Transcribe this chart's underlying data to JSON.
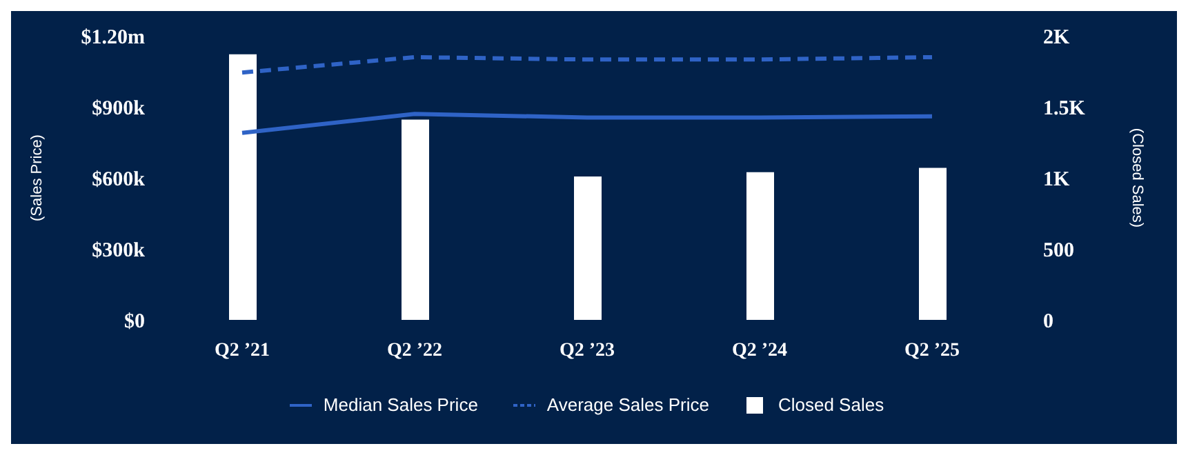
{
  "chart_data": {
    "type": "bar",
    "categories": [
      "Q2 ’21",
      "Q2 ’22",
      "Q2 ’23",
      "Q2 ’24",
      "Q2 ’25"
    ],
    "ylabel": "(Sales Price)",
    "y2label": "(Closed Sales)",
    "series": [
      {
        "name": "Median Sales Price",
        "type": "line",
        "color": "#2f63c6",
        "line_style": "solid",
        "values": [
          790000,
          870000,
          855000,
          855000,
          860000
        ]
      },
      {
        "name": "Average Sales Price",
        "type": "line",
        "color": "#2f63c6",
        "line_style": "dashed",
        "values": [
          1045000,
          1110000,
          1100000,
          1100000,
          1110000
        ]
      },
      {
        "name": "Closed Sales",
        "axis": "y2",
        "color": "#ffffff",
        "values": [
          1870,
          1410,
          1010,
          1040,
          1070
        ]
      }
    ],
    "ylim": [
      0,
      1200000
    ],
    "yticks": [
      {
        "value": 0,
        "label": "$0"
      },
      {
        "value": 300000,
        "label": "$300k"
      },
      {
        "value": 600000,
        "label": "$600k"
      },
      {
        "value": 900000,
        "label": "$900k"
      },
      {
        "value": 1200000,
        "label": "$1.20m"
      }
    ],
    "y2lim": [
      0,
      2000
    ],
    "y2ticks": [
      {
        "value": 0,
        "label": "0"
      },
      {
        "value": 500,
        "label": "500"
      },
      {
        "value": 1000,
        "label": "1K"
      },
      {
        "value": 1500,
        "label": "1.5K"
      },
      {
        "value": 2000,
        "label": "2K"
      }
    ],
    "legend": "bottom",
    "marker": "none",
    "grid": false
  }
}
